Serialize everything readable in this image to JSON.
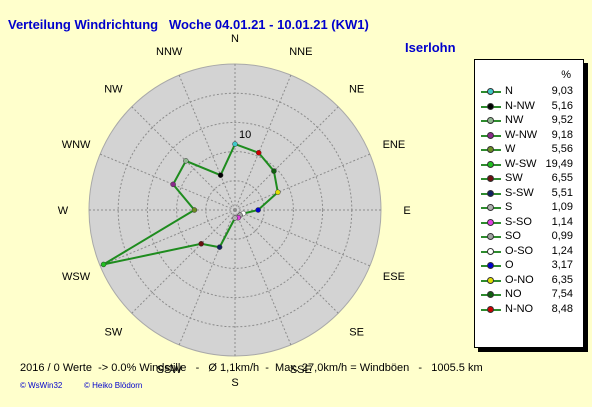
{
  "header": {
    "title": "Verteilung Windrichtung   Woche 04.01.21 - 10.01.21 (KW1)",
    "location": "Iserlohn"
  },
  "chart_data": {
    "type": "radar",
    "directions": [
      "N",
      "NNE",
      "NE",
      "ENE",
      "E",
      "ESE",
      "SE",
      "SSE",
      "S",
      "SSW",
      "SW",
      "WSW",
      "W",
      "WNW",
      "NW",
      "NNW"
    ],
    "ring_label": "10",
    "ring_value": 10,
    "rmax": 20,
    "ring_step": 4,
    "series_color": "#1e8c1e",
    "legend_unit": "%",
    "legend": [
      {
        "name": "N",
        "value": "9,03",
        "color": "#40c8c8"
      },
      {
        "name": "N-NW",
        "value": "5,16",
        "color": "#000000"
      },
      {
        "name": "NW",
        "value": "9,52",
        "color": "#90b890"
      },
      {
        "name": "W-NW",
        "value": "9,18",
        "color": "#8a2a8a"
      },
      {
        "name": "W",
        "value": "5,56",
        "color": "#6b8e23"
      },
      {
        "name": "W-SW",
        "value": "19,49",
        "color": "#20c020"
      },
      {
        "name": "SW",
        "value": "6,55",
        "color": "#6b1010"
      },
      {
        "name": "S-SW",
        "value": "5,51",
        "color": "#102060"
      },
      {
        "name": "S",
        "value": "1,09",
        "color": "#b0b0b0"
      },
      {
        "name": "S-SO",
        "value": "1,14",
        "color": "#e040e0"
      },
      {
        "name": "SO",
        "value": "0,99",
        "color": "#a0a0a0"
      },
      {
        "name": "O-SO",
        "value": "1,24",
        "color": "#ffffff"
      },
      {
        "name": "O",
        "value": "3,17",
        "color": "#0000cc"
      },
      {
        "name": "O-NO",
        "value": "6,35",
        "color": "#e0e000"
      },
      {
        "name": "NO",
        "value": "7,54",
        "color": "#106010"
      },
      {
        "name": "N-NO",
        "value": "8,48",
        "color": "#cc0000"
      }
    ],
    "values": [
      9.03,
      8.48,
      7.54,
      6.35,
      3.17,
      1.24,
      0.99,
      1.14,
      1.09,
      5.51,
      6.55,
      19.49,
      5.56,
      9.18,
      9.52,
      5.16
    ],
    "point_colors": [
      "#40c8c8",
      "#cc0000",
      "#106010",
      "#e0e000",
      "#0000cc",
      "#ffffff",
      "#a0a0a0",
      "#e040e0",
      "#b0b0b0",
      "#102060",
      "#6b1010",
      "#20c020",
      "#6b8e23",
      "#8a2a8a",
      "#90b890",
      "#000000"
    ]
  },
  "footer": {
    "stats": "2016 / 0 Werte  -> 0.0% Windstille   -   Ø 1,1km/h  -  Max. 27,0km/h = Windböen   -   1005.5 km",
    "credit_left": "© WsWin32",
    "credit_right": "© Heiko Blödorn"
  }
}
